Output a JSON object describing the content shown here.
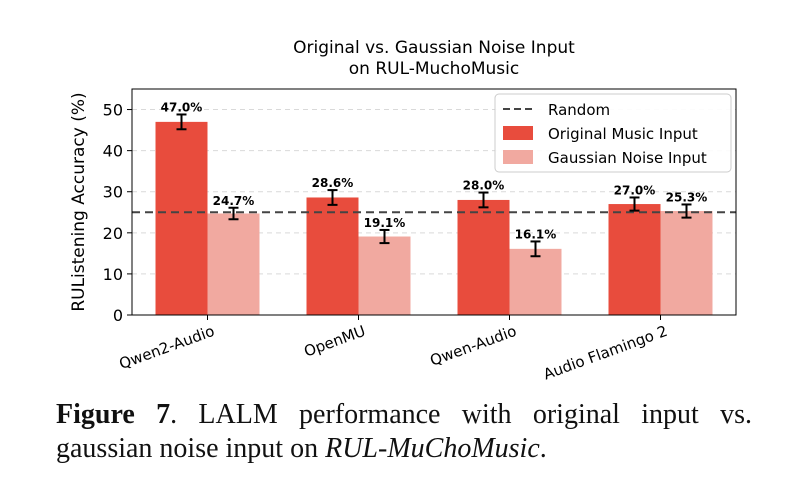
{
  "chart_data": {
    "type": "bar",
    "title": "Original vs. Gaussian Noise Input\non RUL-MuchoMusic",
    "xlabel": "",
    "ylabel": "RUListening Accuracy (%)",
    "ylim": [
      0,
      55
    ],
    "yticks": [
      0,
      10,
      20,
      30,
      40,
      50
    ],
    "grid": true,
    "legend_position": "top-right",
    "categories": [
      "Qwen2-Audio",
      "OpenMU",
      "Qwen-Audio",
      "Audio Flamingo 2"
    ],
    "series": [
      {
        "name": "Original Music Input",
        "color": "#e84c3d",
        "values": [
          47.0,
          28.6,
          28.0,
          27.0
        ],
        "errors": [
          1.8,
          1.8,
          1.8,
          1.6
        ],
        "labels": [
          "47.0%",
          "28.6%",
          "28.0%",
          "27.0%"
        ]
      },
      {
        "name": "Gaussian Noise Input",
        "color": "#f1a9a0",
        "values": [
          24.7,
          19.1,
          16.1,
          25.3
        ],
        "errors": [
          1.4,
          1.6,
          1.8,
          1.6
        ],
        "labels": [
          "24.7%",
          "19.1%",
          "16.1%",
          "25.3%"
        ]
      }
    ],
    "reference_line": {
      "name": "Random",
      "value": 25,
      "color": "#444444"
    }
  },
  "caption": {
    "label": "Figure 7",
    "text_before": ". LALM performance with original input vs. gaussian noise input on ",
    "dataset": "RUL-MuChoMusic",
    "text_after": "."
  }
}
